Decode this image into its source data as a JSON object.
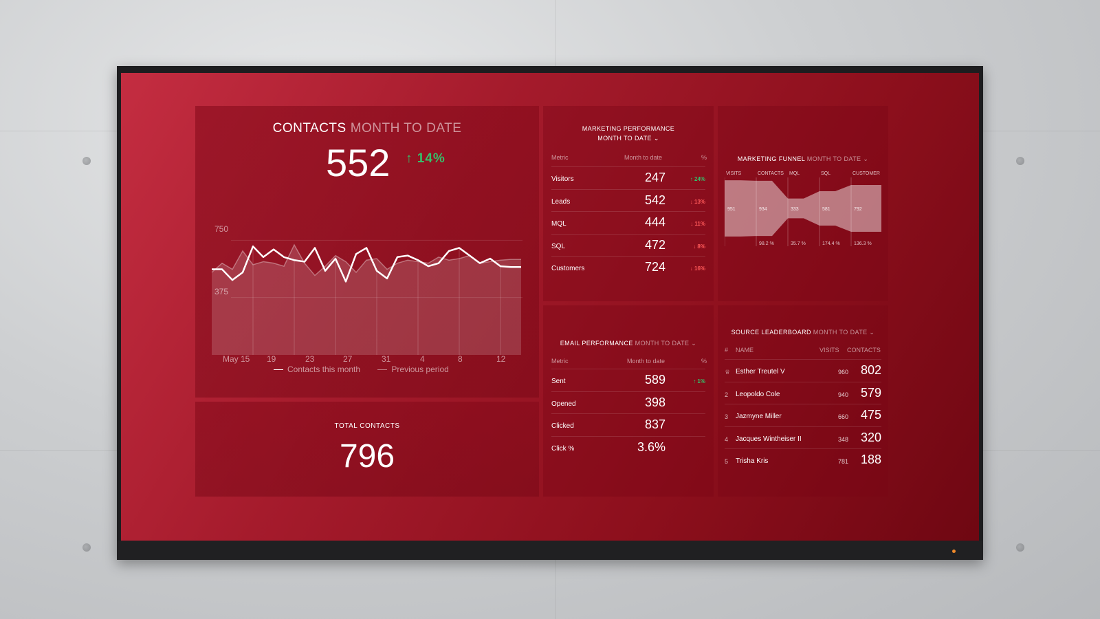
{
  "contacts": {
    "title": "CONTACTS",
    "period": "MONTH TO DATE",
    "value": "552",
    "change": "↑ 14%",
    "y_ticks": [
      "750",
      "375"
    ],
    "x_ticks": [
      "May 15",
      "19",
      "23",
      "27",
      "31",
      "4",
      "8",
      "12"
    ],
    "legend_current": "Contacts this month",
    "legend_previous": "Previous period",
    "chart_data": {
      "type": "line",
      "x": [
        "May 15",
        "May 16",
        "May 17",
        "May 18",
        "May 19",
        "May 20",
        "May 21",
        "May 22",
        "May 23",
        "May 24",
        "May 25",
        "May 26",
        "May 27",
        "May 28",
        "May 29",
        "May 30",
        "May 31",
        "Jun 1",
        "Jun 2",
        "Jun 3",
        "Jun 4",
        "Jun 5",
        "Jun 6",
        "Jun 7",
        "Jun 8",
        "Jun 9",
        "Jun 10",
        "Jun 11",
        "Jun 12",
        "Jun 13",
        "Jun 14"
      ],
      "series": [
        {
          "name": "Contacts this month",
          "values": [
            560,
            560,
            490,
            540,
            710,
            640,
            690,
            640,
            620,
            610,
            700,
            550,
            630,
            480,
            660,
            700,
            550,
            500,
            640,
            650,
            620,
            580,
            600,
            680,
            700,
            650,
            600,
            630,
            580,
            575,
            575
          ]
        },
        {
          "name": "Previous period",
          "values": [
            540,
            600,
            560,
            680,
            590,
            610,
            600,
            580,
            720,
            600,
            520,
            580,
            650,
            610,
            540,
            620,
            630,
            560,
            600,
            620,
            610,
            600,
            640,
            620,
            630,
            650,
            600,
            610,
            620,
            625,
            625
          ]
        }
      ],
      "ylim": [
        0,
        900
      ]
    }
  },
  "total_contacts": {
    "label": "TOTAL CONTACTS",
    "value": "796"
  },
  "marketing_performance": {
    "title": "MARKETING PERFORMANCE",
    "period": "MONTH TO DATE ⌄",
    "columns": [
      "Metric",
      "Month to date",
      "%"
    ],
    "rows": [
      {
        "name": "Visitors",
        "value": "247",
        "pct": "↑ 24%",
        "dir": "up"
      },
      {
        "name": "Leads",
        "value": "542",
        "pct": "↓ 13%",
        "dir": "down"
      },
      {
        "name": "MQL",
        "value": "444",
        "pct": "↓ 11%",
        "dir": "down"
      },
      {
        "name": "SQL",
        "value": "472",
        "pct": "↓ 8%",
        "dir": "down"
      },
      {
        "name": "Customers",
        "value": "724",
        "pct": "↓ 16%",
        "dir": "down"
      }
    ]
  },
  "email_performance": {
    "title": "EMAIL PERFORMANCE",
    "period": "MONTH TO DATE ⌄",
    "columns": [
      "Metric",
      "Month to date",
      "%"
    ],
    "rows": [
      {
        "name": "Sent",
        "value": "589",
        "pct": "↑ 1%",
        "dir": "up"
      },
      {
        "name": "Opened",
        "value": "398",
        "pct": "",
        "dir": ""
      },
      {
        "name": "Clicked",
        "value": "837",
        "pct": "",
        "dir": ""
      },
      {
        "name": "Click %",
        "value": "3.6%",
        "pct": "",
        "dir": ""
      }
    ]
  },
  "marketing_funnel": {
    "title": "MARKETING FUNNEL",
    "period": "MONTH TO DATE ⌄",
    "stages": [
      "VISITS",
      "CONTACTS",
      "MQL",
      "SQL",
      "CUSTOMER"
    ],
    "values": [
      "951",
      "934",
      "333",
      "581",
      "792"
    ],
    "conversion": [
      "98.2 %",
      "35.7 %",
      "174.4 %",
      "136.3 %"
    ]
  },
  "source_leaderboard": {
    "title": "SOURCE LEADERBOARD",
    "period": "MONTH TO DATE ⌄",
    "columns": [
      "#",
      "NAME",
      "VISITS",
      "CONTACTS"
    ],
    "rows": [
      {
        "rank": "♕",
        "name": "Esther Treutel V",
        "visits": "960",
        "contacts": "802"
      },
      {
        "rank": "2",
        "name": "Leopoldo Cole",
        "visits": "940",
        "contacts": "579"
      },
      {
        "rank": "3",
        "name": "Jazmyne Miller",
        "visits": "660",
        "contacts": "475"
      },
      {
        "rank": "4",
        "name": "Jacques Wintheiser II",
        "visits": "348",
        "contacts": "320"
      },
      {
        "rank": "5",
        "name": "Trisha Kris",
        "visits": "781",
        "contacts": "188"
      }
    ]
  }
}
